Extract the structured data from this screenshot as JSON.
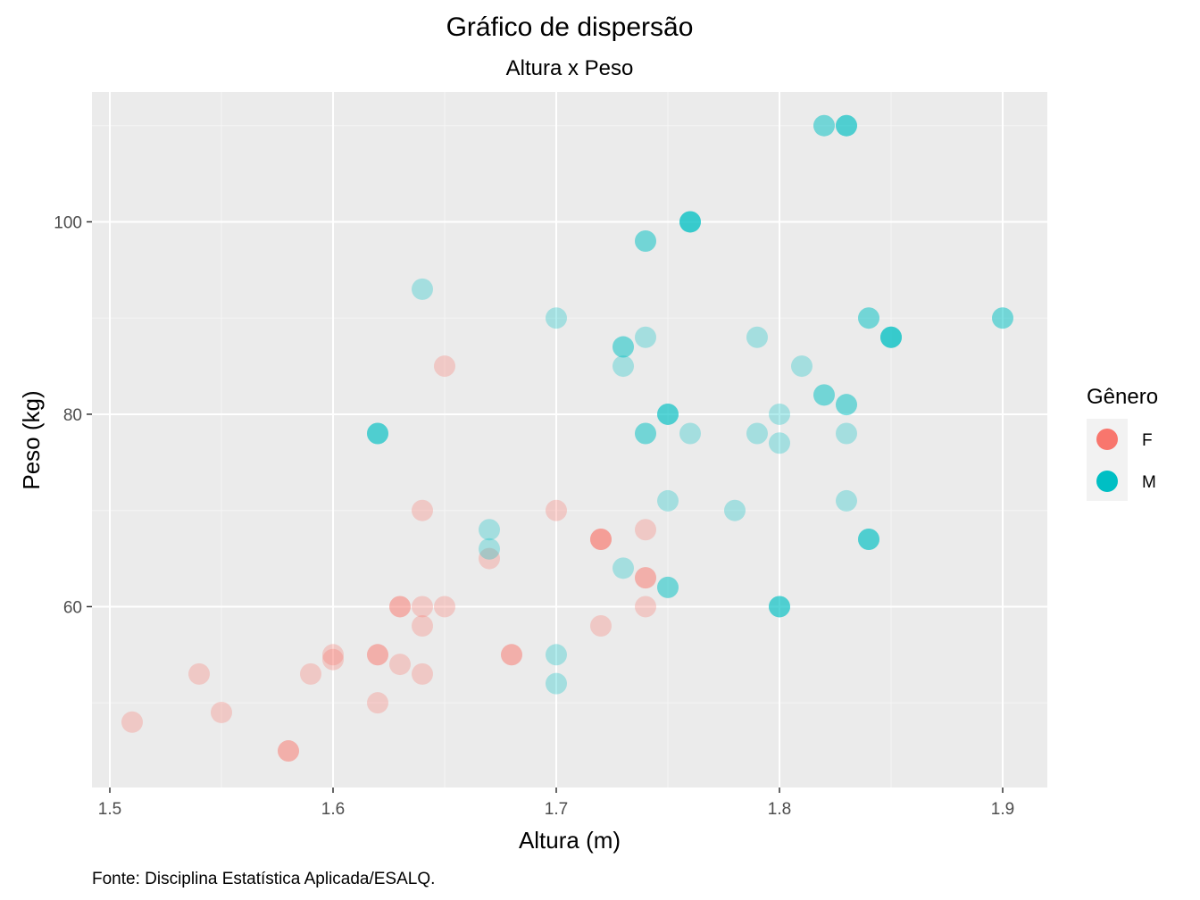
{
  "chart_data": {
    "type": "scatter",
    "title": "Gráfico de dispersão",
    "subtitle": "Altura x Peso",
    "xlabel": "Altura (m)",
    "ylabel": "Peso (kg)",
    "caption": "Fonte: Disciplina Estatística Aplicada/ESALQ.",
    "xlim": [
      1.492,
      1.92
    ],
    "ylim": [
      41.2,
      113.5
    ],
    "x_ticks": [
      1.5,
      1.6,
      1.7,
      1.8,
      1.9
    ],
    "x_tick_labels": [
      "1.5",
      "1.6",
      "1.7",
      "1.8",
      "1.9"
    ],
    "y_ticks": [
      60,
      80,
      100
    ],
    "y_tick_labels": [
      "60",
      "80",
      "100"
    ],
    "grid": true,
    "background": "#ebebeb",
    "legend": {
      "title": "Gênero",
      "position": "right"
    },
    "point_alpha": 0.3,
    "series": [
      {
        "name": "F",
        "color": "#F8766D",
        "points": [
          {
            "x": 1.51,
            "y": 48
          },
          {
            "x": 1.54,
            "y": 53
          },
          {
            "x": 1.55,
            "y": 49
          },
          {
            "x": 1.58,
            "y": 45
          },
          {
            "x": 1.58,
            "y": 45
          },
          {
            "x": 1.59,
            "y": 53
          },
          {
            "x": 1.6,
            "y": 55
          },
          {
            "x": 1.6,
            "y": 54.5
          },
          {
            "x": 1.62,
            "y": 50
          },
          {
            "x": 1.62,
            "y": 55
          },
          {
            "x": 1.62,
            "y": 55
          },
          {
            "x": 1.63,
            "y": 54
          },
          {
            "x": 1.63,
            "y": 60
          },
          {
            "x": 1.63,
            "y": 60
          },
          {
            "x": 1.64,
            "y": 53
          },
          {
            "x": 1.64,
            "y": 58
          },
          {
            "x": 1.64,
            "y": 60
          },
          {
            "x": 1.64,
            "y": 70
          },
          {
            "x": 1.65,
            "y": 60
          },
          {
            "x": 1.65,
            "y": 85
          },
          {
            "x": 1.67,
            "y": 65
          },
          {
            "x": 1.68,
            "y": 55
          },
          {
            "x": 1.68,
            "y": 55
          },
          {
            "x": 1.7,
            "y": 70
          },
          {
            "x": 1.72,
            "y": 58
          },
          {
            "x": 1.72,
            "y": 67
          },
          {
            "x": 1.72,
            "y": 67
          },
          {
            "x": 1.72,
            "y": 67
          },
          {
            "x": 1.74,
            "y": 60
          },
          {
            "x": 1.74,
            "y": 63
          },
          {
            "x": 1.74,
            "y": 63
          },
          {
            "x": 1.74,
            "y": 68
          }
        ]
      },
      {
        "name": "M",
        "color": "#00BFC4",
        "points": [
          {
            "x": 1.62,
            "y": 78
          },
          {
            "x": 1.62,
            "y": 78
          },
          {
            "x": 1.62,
            "y": 78
          },
          {
            "x": 1.64,
            "y": 93
          },
          {
            "x": 1.67,
            "y": 66
          },
          {
            "x": 1.67,
            "y": 68
          },
          {
            "x": 1.7,
            "y": 52
          },
          {
            "x": 1.7,
            "y": 55
          },
          {
            "x": 1.7,
            "y": 90
          },
          {
            "x": 1.73,
            "y": 64
          },
          {
            "x": 1.73,
            "y": 85
          },
          {
            "x": 1.73,
            "y": 87
          },
          {
            "x": 1.73,
            "y": 87
          },
          {
            "x": 1.74,
            "y": 78
          },
          {
            "x": 1.74,
            "y": 78
          },
          {
            "x": 1.74,
            "y": 88
          },
          {
            "x": 1.74,
            "y": 98
          },
          {
            "x": 1.74,
            "y": 98
          },
          {
            "x": 1.75,
            "y": 62
          },
          {
            "x": 1.75,
            "y": 62
          },
          {
            "x": 1.75,
            "y": 71
          },
          {
            "x": 1.75,
            "y": 80
          },
          {
            "x": 1.75,
            "y": 80
          },
          {
            "x": 1.75,
            "y": 80
          },
          {
            "x": 1.76,
            "y": 78
          },
          {
            "x": 1.76,
            "y": 100
          },
          {
            "x": 1.76,
            "y": 100
          },
          {
            "x": 1.76,
            "y": 100
          },
          {
            "x": 1.76,
            "y": 100
          },
          {
            "x": 1.78,
            "y": 70
          },
          {
            "x": 1.79,
            "y": 78
          },
          {
            "x": 1.79,
            "y": 88
          },
          {
            "x": 1.8,
            "y": 60
          },
          {
            "x": 1.8,
            "y": 60
          },
          {
            "x": 1.8,
            "y": 60
          },
          {
            "x": 1.8,
            "y": 77
          },
          {
            "x": 1.8,
            "y": 80
          },
          {
            "x": 1.81,
            "y": 85
          },
          {
            "x": 1.82,
            "y": 82
          },
          {
            "x": 1.82,
            "y": 82
          },
          {
            "x": 1.82,
            "y": 110
          },
          {
            "x": 1.82,
            "y": 110
          },
          {
            "x": 1.83,
            "y": 71
          },
          {
            "x": 1.83,
            "y": 78
          },
          {
            "x": 1.83,
            "y": 81
          },
          {
            "x": 1.83,
            "y": 81
          },
          {
            "x": 1.83,
            "y": 110
          },
          {
            "x": 1.83,
            "y": 110
          },
          {
            "x": 1.83,
            "y": 110
          },
          {
            "x": 1.84,
            "y": 67
          },
          {
            "x": 1.84,
            "y": 67
          },
          {
            "x": 1.84,
            "y": 67
          },
          {
            "x": 1.84,
            "y": 90
          },
          {
            "x": 1.84,
            "y": 90
          },
          {
            "x": 1.85,
            "y": 88
          },
          {
            "x": 1.85,
            "y": 88
          },
          {
            "x": 1.85,
            "y": 88
          },
          {
            "x": 1.85,
            "y": 88
          },
          {
            "x": 1.9,
            "y": 90
          },
          {
            "x": 1.9,
            "y": 90
          }
        ]
      }
    ]
  }
}
